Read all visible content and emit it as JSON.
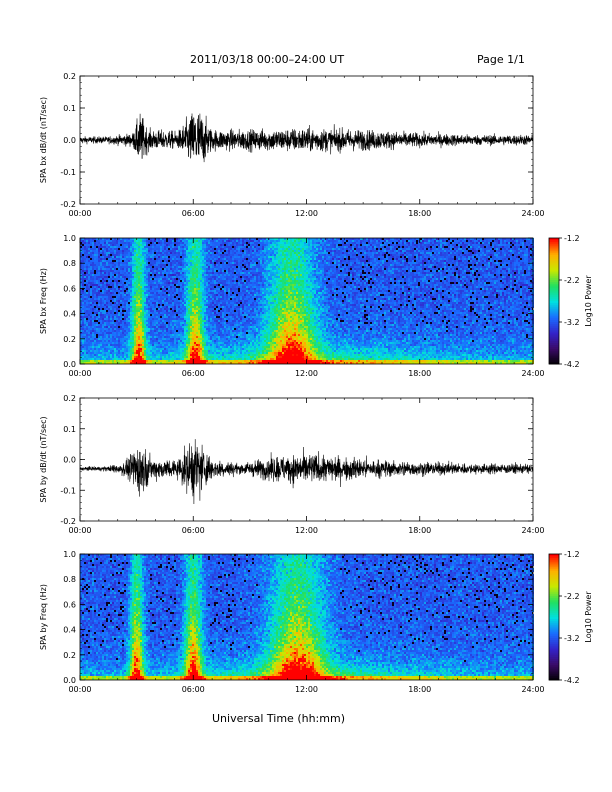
{
  "header": {
    "title": "2011/03/18  00:00–24:00 UT",
    "page": "Page 1/1"
  },
  "xlabel": "Universal Time (hh:mm)",
  "colors": {
    "trace": "#000000",
    "background": "#ffffff",
    "colormap": [
      "#000000",
      "#3a0a66",
      "#3322c8",
      "#1a6cff",
      "#00e0e0",
      "#20e060",
      "#c8e800",
      "#ffb000",
      "#ff0000"
    ]
  },
  "chart_data": [
    {
      "type": "line",
      "ylabel": "SPA bx dB/dt (nT/sec)",
      "xlim": [
        0,
        24
      ],
      "ylim": [
        -0.2,
        0.2
      ],
      "x_ticks": [
        "00:00",
        "06:00",
        "12:00",
        "18:00",
        "24:00"
      ],
      "y_ticks": [
        "-0.2",
        "-0.1",
        "0.0",
        "0.1",
        "0.2"
      ],
      "baseline": 0.0,
      "activity": [
        {
          "x": 0.0,
          "amp": 0.02
        },
        {
          "x": 1.5,
          "amp": 0.02
        },
        {
          "x": 2.8,
          "amp": 0.04
        },
        {
          "x": 3.2,
          "amp": 0.16
        },
        {
          "x": 3.6,
          "amp": 0.06
        },
        {
          "x": 5.2,
          "amp": 0.05
        },
        {
          "x": 6.2,
          "amp": 0.2
        },
        {
          "x": 7.0,
          "amp": 0.06
        },
        {
          "x": 9.0,
          "amp": 0.06
        },
        {
          "x": 12.0,
          "amp": 0.07
        },
        {
          "x": 15.0,
          "amp": 0.06
        },
        {
          "x": 18.0,
          "amp": 0.04
        },
        {
          "x": 21.0,
          "amp": 0.03
        },
        {
          "x": 24.0,
          "amp": 0.03
        }
      ]
    },
    {
      "type": "heatmap",
      "ylabel": "SPA bx Freq (Hz)",
      "xlim": [
        0,
        24
      ],
      "ylim": [
        0.0,
        1.0
      ],
      "x_ticks": [
        "00:00",
        "06:00",
        "12:00",
        "18:00",
        "24:00"
      ],
      "y_ticks": [
        "0.0",
        "0.2",
        "0.4",
        "0.6",
        "0.8",
        "1.0"
      ],
      "colorbar": {
        "label": "Log10 Power",
        "range": [
          -4.2,
          -1.2
        ],
        "ticks": [
          "-1.2",
          "-2.2",
          "-3.2",
          "-4.2"
        ]
      },
      "bursts": [
        {
          "x": 3.1,
          "width": 0.35
        },
        {
          "x": 6.1,
          "width": 0.45
        },
        {
          "x": 11.2,
          "width": 1.2
        }
      ]
    },
    {
      "type": "line",
      "ylabel": "SPA by dB/dt (nT/sec)",
      "xlim": [
        0,
        24
      ],
      "ylim": [
        -0.2,
        0.2
      ],
      "x_ticks": [
        "00:00",
        "06:00",
        "12:00",
        "18:00",
        "24:00"
      ],
      "y_ticks": [
        "-0.2",
        "-0.1",
        "0.0",
        "0.1",
        "0.2"
      ],
      "baseline": -0.03,
      "activity": [
        {
          "x": 0.0,
          "amp": 0.01
        },
        {
          "x": 1.5,
          "amp": 0.015
        },
        {
          "x": 2.5,
          "amp": 0.05
        },
        {
          "x": 3.1,
          "amp": 0.17
        },
        {
          "x": 3.8,
          "amp": 0.06
        },
        {
          "x": 5.2,
          "amp": 0.06
        },
        {
          "x": 6.1,
          "amp": 0.2
        },
        {
          "x": 7.0,
          "amp": 0.06
        },
        {
          "x": 8.5,
          "amp": 0.03
        },
        {
          "x": 10.5,
          "amp": 0.08
        },
        {
          "x": 12.0,
          "amp": 0.09
        },
        {
          "x": 14.0,
          "amp": 0.07
        },
        {
          "x": 16.0,
          "amp": 0.05
        },
        {
          "x": 18.0,
          "amp": 0.04
        },
        {
          "x": 21.0,
          "amp": 0.03
        },
        {
          "x": 24.0,
          "amp": 0.03
        }
      ]
    },
    {
      "type": "heatmap",
      "ylabel": "SPA by Freq (Hz)",
      "xlim": [
        0,
        24
      ],
      "ylim": [
        0.0,
        1.0
      ],
      "x_ticks": [
        "00:00",
        "06:00",
        "12:00",
        "18:00",
        "24:00"
      ],
      "y_ticks": [
        "0.0",
        "0.2",
        "0.4",
        "0.6",
        "0.8",
        "1.0"
      ],
      "colorbar": {
        "label": "Log10 Power",
        "range": [
          -4.2,
          -1.2
        ],
        "ticks": [
          "-1.2",
          "-2.2",
          "-3.2",
          "-4.2"
        ]
      },
      "bursts": [
        {
          "x": 3.0,
          "width": 0.35
        },
        {
          "x": 6.0,
          "width": 0.45
        },
        {
          "x": 11.5,
          "width": 1.4
        }
      ]
    }
  ]
}
